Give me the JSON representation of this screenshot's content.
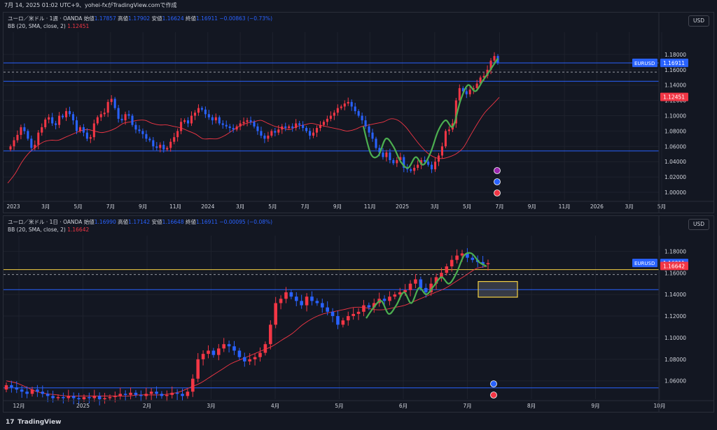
{
  "header": {
    "text": "7月 14, 2025 01:02 UTC+9、yohei-fxがTradingView.comで作成"
  },
  "footer": {
    "logo_text": "17",
    "brand": "TradingView"
  },
  "colors": {
    "bg": "#131722",
    "up": "#f23645",
    "down": "#2962ff",
    "bb": "#f23645",
    "hline": "#2962ff",
    "wave": "#4caf50",
    "yellow": "#f5d142"
  },
  "panels": [
    {
      "id": "weekly",
      "legend": {
        "symbol": "ユーロ／米ドル · 1週 · OANDA",
        "open_label": "始値",
        "open": "1.17857",
        "high_label": "高値",
        "high": "1.17902",
        "low_label": "安値",
        "low": "1.16624",
        "close_label": "終値",
        "close": "1.16911",
        "change": "−0.00863 (−0.73%)",
        "bb_label": "BB (20, SMA, close, 2)",
        "bb_value": "1.12451"
      },
      "currency": "USD",
      "price_labels": [
        "1.18000",
        "1.16000",
        "1.14000",
        "1.12000",
        "1.10000",
        "1.08000",
        "1.06000",
        "1.04000",
        "1.02000",
        "1.00000"
      ],
      "badges": [
        {
          "text": "EURUSD",
          "value": "1.16911"
        },
        {
          "text": "",
          "value": "1.12451"
        }
      ],
      "time_labels": [
        "2023",
        "3月",
        "5月",
        "7月",
        "9月",
        "11月",
        "2024",
        "3月",
        "5月",
        "7月",
        "9月",
        "11月",
        "2025",
        "3月",
        "5月",
        "7月",
        "9月",
        "11月",
        "2026",
        "3月",
        "5月"
      ]
    },
    {
      "id": "daily",
      "legend": {
        "symbol": "ユーロ／米ドル · 1日 · OANDA",
        "open_label": "始値",
        "open": "1.16990",
        "high_label": "高値",
        "high": "1.17142",
        "low_label": "安値",
        "low": "1.16648",
        "close_label": "終値",
        "close": "1.16911",
        "change": "−0.00095 (−0.08%)",
        "bb_label": "BB (20, SMA, close, 2)",
        "bb_value": "1.16642"
      },
      "currency": "USD",
      "price_labels": [
        "1.18000",
        "1.16000",
        "1.14000",
        "1.12000",
        "1.10000",
        "1.08000",
        "1.06000"
      ],
      "badges": [
        {
          "text": "EURUSD",
          "value": "1.16911"
        },
        {
          "text": "",
          "value": "1.16642"
        }
      ],
      "time_labels": [
        "12月",
        "2025",
        "2月",
        "3月",
        "4月",
        "5月",
        "6月",
        "7月",
        "8月",
        "9月",
        "10月"
      ]
    }
  ],
  "chart_data": [
    {
      "type": "candlestick",
      "title": "ユーロ／米ドル · 1週 · OANDA",
      "ylim": [
        0.99,
        1.2
      ],
      "x_start": "2023-01",
      "key_levels": [
        1.169,
        1.157,
        1.145,
        1.054
      ],
      "closes": [
        1.06,
        1.068,
        1.075,
        1.085,
        1.08,
        1.07,
        1.058,
        1.062,
        1.078,
        1.085,
        1.095,
        1.098,
        1.09,
        1.088,
        1.1,
        1.098,
        1.106,
        1.102,
        1.094,
        1.08,
        1.085,
        1.078,
        1.07,
        1.072,
        1.09,
        1.098,
        1.102,
        1.104,
        1.118,
        1.122,
        1.11,
        1.096,
        1.094,
        1.102,
        1.1,
        1.088,
        1.082,
        1.08,
        1.076,
        1.07,
        1.068,
        1.06,
        1.058,
        1.062,
        1.056,
        1.058,
        1.066,
        1.072,
        1.08,
        1.092,
        1.094,
        1.09,
        1.1,
        1.104,
        1.11,
        1.108,
        1.102,
        1.098,
        1.094,
        1.098,
        1.09,
        1.088,
        1.086,
        1.084,
        1.082,
        1.086,
        1.09,
        1.092,
        1.094,
        1.092,
        1.086,
        1.08,
        1.074,
        1.07,
        1.074,
        1.08,
        1.078,
        1.082,
        1.086,
        1.084,
        1.086,
        1.084,
        1.09,
        1.088,
        1.084,
        1.08,
        1.074,
        1.078,
        1.084,
        1.088,
        1.092,
        1.096,
        1.1,
        1.104,
        1.11,
        1.112,
        1.116,
        1.118,
        1.112,
        1.106,
        1.1,
        1.094,
        1.086,
        1.078,
        1.07,
        1.058,
        1.052,
        1.046,
        1.052,
        1.042,
        1.038,
        1.042,
        1.046,
        1.032,
        1.03,
        1.028,
        1.032,
        1.036,
        1.042,
        1.04,
        1.036,
        1.03,
        1.04,
        1.048,
        1.06,
        1.08,
        1.082,
        1.09,
        1.12,
        1.136,
        1.132,
        1.128,
        1.134,
        1.136,
        1.142,
        1.15,
        1.152,
        1.16,
        1.172,
        1.178,
        1.169
      ],
      "bb_mid": [
        1.012,
        1.024,
        1.04,
        1.052,
        1.06,
        1.066,
        1.068,
        1.068,
        1.072,
        1.076,
        1.08,
        1.082,
        1.08,
        1.078,
        1.08,
        1.084,
        1.09,
        1.092,
        1.094,
        1.094,
        1.09,
        1.088,
        1.088,
        1.086,
        1.084,
        1.08,
        1.076,
        1.07,
        1.07,
        1.07,
        1.074,
        1.08,
        1.086,
        1.09,
        1.092,
        1.094,
        1.09,
        1.086,
        1.084,
        1.082,
        1.086,
        1.088,
        1.09,
        1.088,
        1.086,
        1.084,
        1.082,
        1.08,
        1.082,
        1.086,
        1.088,
        1.09,
        1.092,
        1.096,
        1.094,
        1.086,
        1.074,
        1.062,
        1.052,
        1.046,
        1.044,
        1.046,
        1.05,
        1.058,
        1.074,
        1.09,
        1.104,
        1.114,
        1.124
      ],
      "wave": [
        1.086,
        1.05,
        1.048,
        1.07,
        1.06,
        1.04,
        1.032,
        1.046,
        1.036,
        1.052,
        1.08,
        1.094,
        1.086,
        1.12,
        1.14,
        1.132,
        1.146,
        1.16,
        1.175
      ]
    },
    {
      "type": "candlestick",
      "title": "ユーロ／米ドル · 1日 · OANDA",
      "ylim": [
        1.043,
        1.188
      ],
      "x_start": "2024-12",
      "key_levels": [
        1.163,
        1.1585,
        1.1445,
        1.0535
      ],
      "zone": {
        "from": 1.1375,
        "to": 1.152
      },
      "closes": [
        1.056,
        1.054,
        1.052,
        1.05,
        1.048,
        1.052,
        1.05,
        1.048,
        1.046,
        1.044,
        1.045,
        1.044,
        1.046,
        1.044,
        1.043,
        1.045,
        1.044,
        1.046,
        1.043,
        1.044,
        1.045,
        1.046,
        1.048,
        1.047,
        1.049,
        1.047,
        1.046,
        1.048,
        1.05,
        1.048,
        1.046,
        1.047,
        1.049,
        1.048,
        1.046,
        1.05,
        1.062,
        1.08,
        1.085,
        1.088,
        1.084,
        1.09,
        1.094,
        1.092,
        1.088,
        1.082,
        1.078,
        1.08,
        1.082,
        1.086,
        1.094,
        1.112,
        1.132,
        1.136,
        1.142,
        1.138,
        1.134,
        1.13,
        1.138,
        1.134,
        1.132,
        1.128,
        1.124,
        1.12,
        1.112,
        1.116,
        1.12,
        1.122,
        1.124,
        1.13,
        1.128,
        1.132,
        1.136,
        1.134,
        1.138,
        1.14,
        1.142,
        1.144,
        1.15,
        1.154,
        1.146,
        1.142,
        1.15,
        1.156,
        1.16,
        1.166,
        1.172,
        1.176,
        1.178,
        1.174,
        1.172,
        1.17,
        1.168,
        1.169
      ],
      "bb_mid": [
        1.06,
        1.058,
        1.054,
        1.05,
        1.048,
        1.047,
        1.046,
        1.046,
        1.046,
        1.046,
        1.046,
        1.046,
        1.046,
        1.047,
        1.047,
        1.047,
        1.048,
        1.05,
        1.054,
        1.058,
        1.064,
        1.07,
        1.076,
        1.08,
        1.084,
        1.088,
        1.092,
        1.098,
        1.104,
        1.112,
        1.118,
        1.122,
        1.124,
        1.126,
        1.128,
        1.128,
        1.126,
        1.126,
        1.128,
        1.13,
        1.134,
        1.138,
        1.142,
        1.146,
        1.152,
        1.158,
        1.164,
        1.166
      ],
      "wave": [
        1.118,
        1.128,
        1.134,
        1.122,
        1.13,
        1.142,
        1.132,
        1.146,
        1.14,
        1.148,
        1.156,
        1.15,
        1.16,
        1.176,
        1.178,
        1.17,
        1.166
      ]
    }
  ]
}
